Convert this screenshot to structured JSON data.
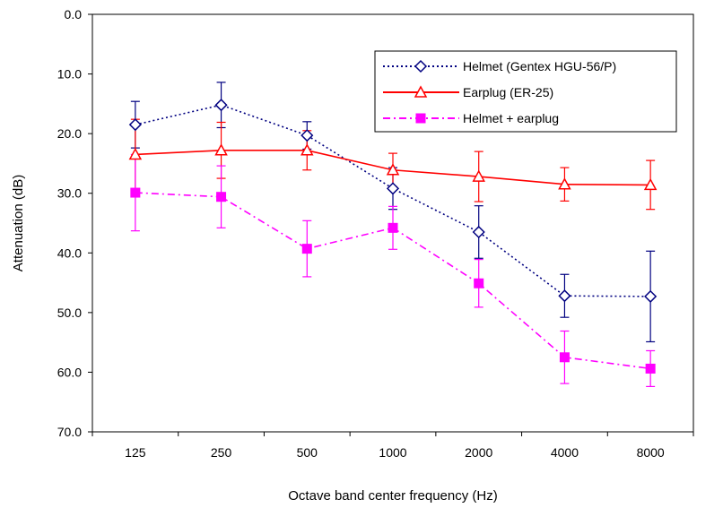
{
  "chart_data": {
    "type": "line",
    "title": "",
    "xlabel": "Octave band center frequency (Hz)",
    "ylabel": "Attenuation (dB)",
    "categories": [
      "125",
      "250",
      "500",
      "1000",
      "2000",
      "4000",
      "8000"
    ],
    "y_ticks": [
      "0.0",
      "10.0",
      "20.0",
      "30.0",
      "40.0",
      "50.0",
      "60.0",
      "70.0"
    ],
    "ylim": [
      0,
      70
    ],
    "y_inverted": true,
    "grid": false,
    "legend_position": "top-right",
    "series": [
      {
        "name": "Helmet (Gentex HGU-56/P)",
        "color": "#000080",
        "marker": "diamond-open",
        "line_style": "dotted",
        "values": [
          18.5,
          15.2,
          20.3,
          29.2,
          36.5,
          47.2,
          47.3
        ],
        "error": [
          3.9,
          3.8,
          2.3,
          3.5,
          4.4,
          3.6,
          7.6
        ]
      },
      {
        "name": "Earplug (ER-25)",
        "color": "#ff0000",
        "marker": "triangle-open",
        "line_style": "solid",
        "values": [
          23.5,
          22.8,
          22.8,
          26.1,
          27.2,
          28.5,
          28.6
        ],
        "error": [
          5.9,
          4.7,
          3.3,
          2.8,
          4.2,
          2.8,
          4.1
        ]
      },
      {
        "name": "Helmet + earplug",
        "color": "#ff00ff",
        "marker": "square-filled",
        "line_style": "dash-dot",
        "values": [
          29.9,
          30.6,
          39.3,
          35.8,
          45.1,
          57.5,
          59.4
        ],
        "error": [
          6.4,
          5.2,
          4.7,
          3.6,
          4.0,
          4.4,
          3.0
        ]
      }
    ]
  }
}
